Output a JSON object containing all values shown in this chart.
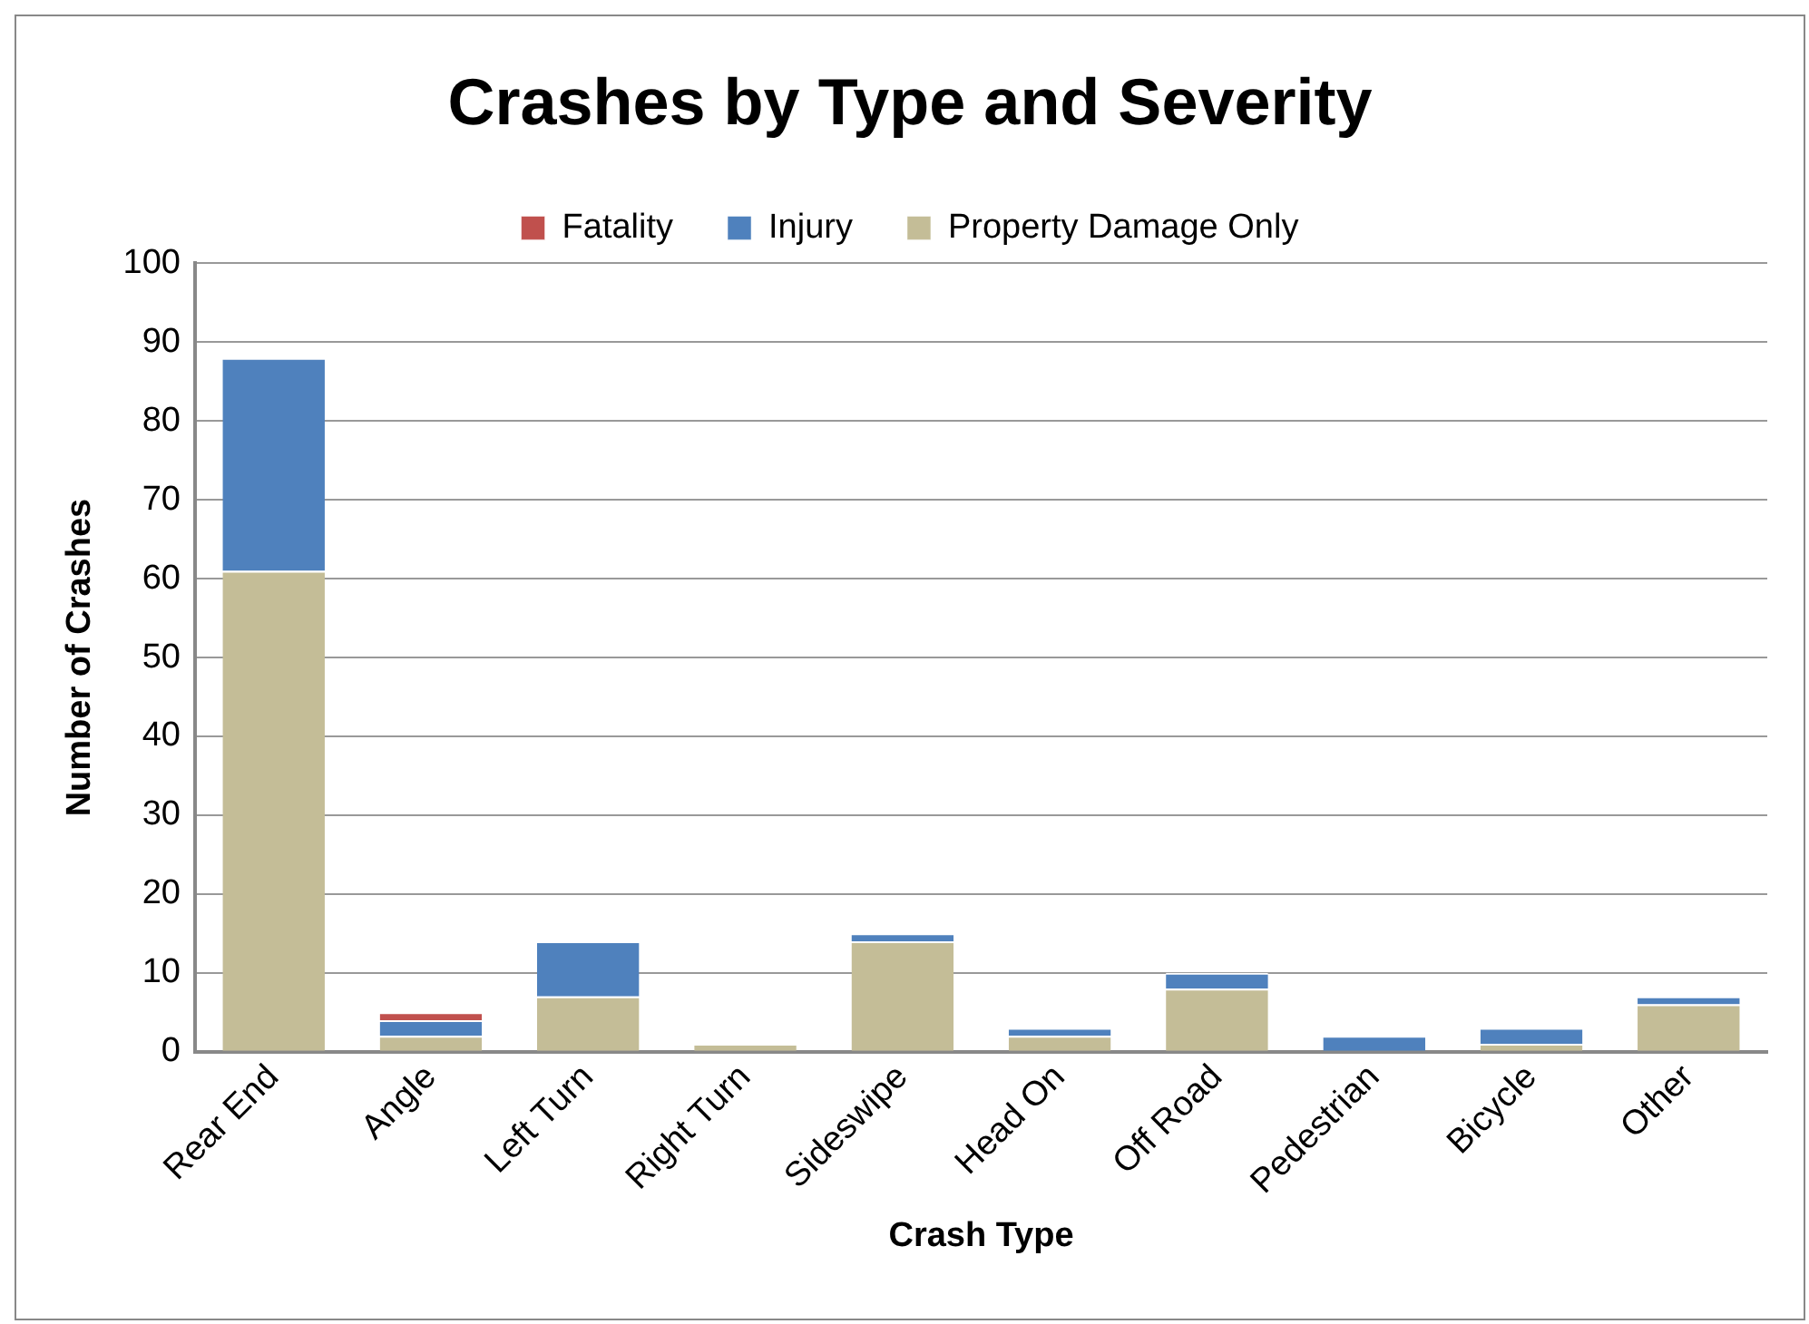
{
  "chart_data": {
    "type": "bar",
    "title": "Crashes by Type and Severity",
    "xlabel": "Crash Type",
    "ylabel": "Number of Crashes",
    "categories": [
      "Rear End",
      "Angle",
      "Left Turn",
      "Right Turn",
      "Sideswipe",
      "Head On",
      "Off Road",
      "Pedestrian",
      "Bicycle",
      "Other"
    ],
    "series": [
      {
        "name": "Property Damage Only",
        "color": "#c4bd97",
        "values": [
          61,
          2,
          7,
          1,
          14,
          2,
          8,
          0,
          1,
          6
        ]
      },
      {
        "name": "Injury",
        "color": "#4f81bd",
        "values": [
          27,
          2,
          7,
          0,
          1,
          1,
          2,
          2,
          2,
          1
        ]
      },
      {
        "name": "Fatality",
        "color": "#c0504d",
        "values": [
          0,
          1,
          0,
          0,
          0,
          0,
          0,
          0,
          0,
          0
        ]
      }
    ],
    "stacked": true,
    "ylim": [
      0,
      100
    ],
    "yticks": [
      0,
      10,
      20,
      30,
      40,
      50,
      60,
      70,
      80,
      90,
      100
    ],
    "grid": "y",
    "legend": "top"
  }
}
